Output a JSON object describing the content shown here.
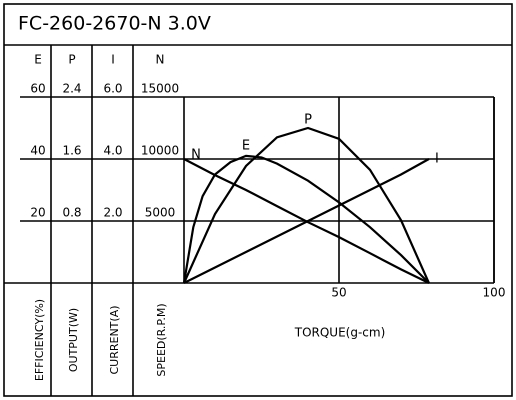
{
  "chart_data": {
    "type": "line",
    "title": "FC-260-2670-N   3.0V",
    "x_label": "TORQUE(g-cm)",
    "xlim": [
      0,
      100
    ],
    "xticks": [
      50,
      100
    ],
    "grid": true,
    "y_axes": [
      {
        "name": "E",
        "label": "EFFICIENCY(%)",
        "lim": [
          0,
          60
        ],
        "ticks": [
          20,
          40,
          60
        ]
      },
      {
        "name": "P",
        "label": "OUTPUT(W)",
        "lim": [
          0,
          2.4
        ],
        "ticks": [
          0.8,
          1.6,
          2.4
        ]
      },
      {
        "name": "I",
        "label": "CURRENT(A)",
        "lim": [
          0,
          6
        ],
        "ticks": [
          {
            "value": 2,
            "label": "2.0"
          },
          {
            "value": 4,
            "label": "4.0"
          },
          {
            "value": 6,
            "label": "6.0"
          }
        ]
      },
      {
        "name": "N",
        "label": "SPEED(R.P.M)",
        "lim": [
          0,
          15000
        ],
        "ticks": [
          5000,
          10000,
          15000
        ]
      }
    ],
    "series": [
      {
        "name": "N",
        "axis": 3,
        "color": "#000000",
        "x": [
          0,
          10,
          20,
          30,
          40,
          50,
          60,
          70,
          79
        ],
        "values": [
          10000,
          8700,
          7500,
          6200,
          4900,
          3700,
          2400,
          1100,
          0
        ]
      },
      {
        "name": "E",
        "axis": 0,
        "color": "#000000",
        "x": [
          0,
          3,
          6,
          10,
          15,
          20,
          25,
          30,
          40,
          50,
          60,
          70,
          79
        ],
        "values": [
          0,
          18,
          28,
          35,
          39,
          41,
          40.5,
          38.5,
          33,
          26,
          18,
          9,
          0
        ]
      },
      {
        "name": "P",
        "axis": 1,
        "color": "#000000",
        "x": [
          0,
          10,
          20,
          30,
          40,
          50,
          60,
          70,
          79
        ],
        "values": [
          0,
          0.89,
          1.51,
          1.88,
          2.0,
          1.86,
          1.46,
          0.81,
          0
        ]
      },
      {
        "name": "I",
        "axis": 2,
        "color": "#000000",
        "x": [
          0,
          10,
          20,
          30,
          40,
          50,
          60,
          70,
          79
        ],
        "values": [
          0,
          0.5,
          1.0,
          1.5,
          2.0,
          2.5,
          3.0,
          3.5,
          4.0
        ]
      }
    ]
  }
}
